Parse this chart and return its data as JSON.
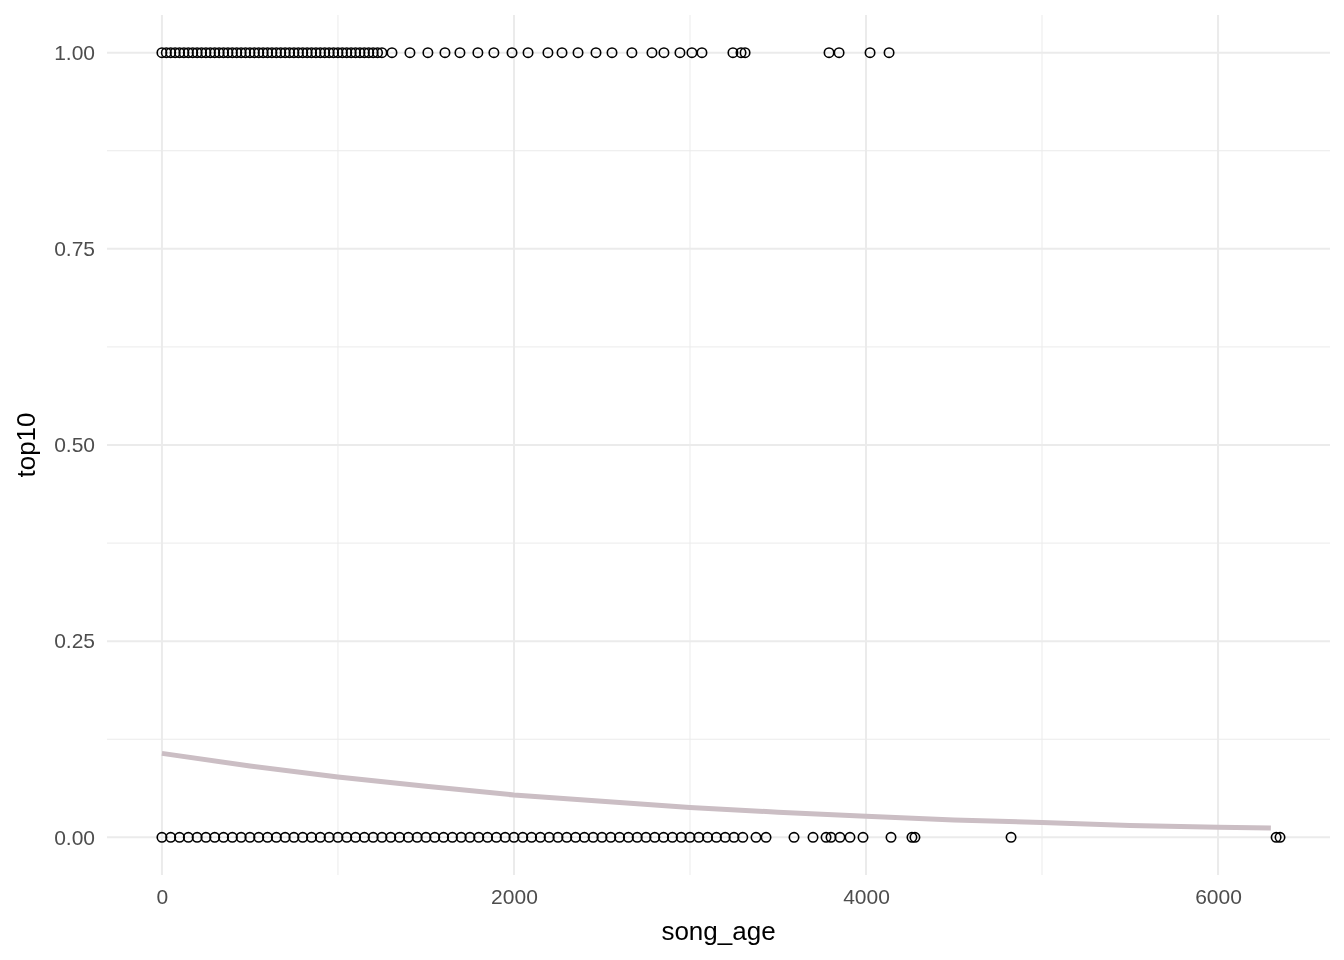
{
  "chart_data": {
    "type": "scatter",
    "xlabel": "song_age",
    "ylabel": "top10",
    "xlim": [
      -312,
      6636
    ],
    "ylim": [
      -0.048,
      1.048
    ],
    "xticks": [
      0,
      {
        "value": 1000,
        "label": null
      },
      2000,
      {
        "value": 3000,
        "label": null
      },
      4000,
      {
        "value": 5000,
        "label": null
      },
      6000
    ],
    "yticks": [
      {
        "value": 0,
        "label": "0.00"
      },
      {
        "value": 0.125,
        "label": null
      },
      {
        "value": 0.25,
        "label": "0.25"
      },
      {
        "value": 0.375,
        "label": null
      },
      {
        "value": 0.5,
        "label": "0.50"
      },
      {
        "value": 0.625,
        "label": null
      },
      {
        "value": 0.75,
        "label": "0.75"
      },
      {
        "value": 0.875,
        "label": null
      },
      {
        "value": 1,
        "label": "1.00"
      }
    ],
    "grid": true,
    "series": [
      {
        "color": "#000000",
        "marker": "circle",
        "x": [
          0,
          25,
          50,
          75,
          100,
          125,
          150,
          175,
          200,
          225,
          250,
          275,
          300,
          325,
          350,
          375,
          400,
          425,
          450,
          475,
          500,
          525,
          550,
          575,
          600,
          625,
          650,
          675,
          700,
          725,
          750,
          775,
          800,
          825,
          850,
          875,
          900,
          925,
          950,
          975,
          1000,
          1025,
          1050,
          1075,
          1100,
          1125,
          1150,
          1175,
          1200,
          1225,
          1250,
          1307,
          1409,
          1511,
          1608,
          1693,
          1795,
          1886,
          1989,
          2080,
          2193,
          2273,
          2364,
          2466,
          2557,
          2670,
          2784,
          2852,
          2943,
          3011,
          3068,
          3244,
          3290,
          3313,
          3790,
          3847,
          4023,
          4131
        ],
        "values": [
          1,
          1,
          1,
          1,
          1,
          1,
          1,
          1,
          1,
          1,
          1,
          1,
          1,
          1,
          1,
          1,
          1,
          1,
          1,
          1,
          1,
          1,
          1,
          1,
          1,
          1,
          1,
          1,
          1,
          1,
          1,
          1,
          1,
          1,
          1,
          1,
          1,
          1,
          1,
          1,
          1,
          1,
          1,
          1,
          1,
          1,
          1,
          1,
          1,
          1,
          1,
          1,
          1,
          1,
          1,
          1,
          1,
          1,
          1,
          1,
          1,
          1,
          1,
          1,
          1,
          1,
          1,
          1,
          1,
          1,
          1,
          1,
          1,
          1,
          1,
          1,
          1,
          1
        ]
      },
      {
        "color": "#000000",
        "marker": "circle",
        "x": [
          0,
          50,
          100,
          150,
          200,
          250,
          300,
          350,
          400,
          450,
          500,
          550,
          600,
          650,
          700,
          750,
          800,
          850,
          900,
          950,
          1000,
          1050,
          1100,
          1150,
          1200,
          1250,
          1300,
          1350,
          1400,
          1450,
          1500,
          1550,
          1600,
          1650,
          1700,
          1750,
          1800,
          1850,
          1900,
          1950,
          2000,
          2050,
          2100,
          2150,
          2200,
          2250,
          2300,
          2350,
          2400,
          2450,
          2500,
          2550,
          2600,
          2650,
          2700,
          2750,
          2800,
          2850,
          2900,
          2950,
          3000,
          3050,
          3100,
          3150,
          3200,
          3250,
          3300,
          3375,
          3432,
          3591,
          3699,
          3773,
          3801,
          3852,
          3909,
          3983,
          4142,
          4261,
          4278,
          4824,
          6330,
          6352
        ],
        "values": [
          0,
          0,
          0,
          0,
          0,
          0,
          0,
          0,
          0,
          0,
          0,
          0,
          0,
          0,
          0,
          0,
          0,
          0,
          0,
          0,
          0,
          0,
          0,
          0,
          0,
          0,
          0,
          0,
          0,
          0,
          0,
          0,
          0,
          0,
          0,
          0,
          0,
          0,
          0,
          0,
          0,
          0,
          0,
          0,
          0,
          0,
          0,
          0,
          0,
          0,
          0,
          0,
          0,
          0,
          0,
          0,
          0,
          0,
          0,
          0,
          0,
          0,
          0,
          0,
          0,
          0,
          0,
          0,
          0,
          0,
          0,
          0,
          0,
          0,
          0,
          0,
          0,
          0,
          0,
          0,
          0,
          0
        ]
      },
      {
        "type": "line",
        "color": "#cbbec4",
        "marker": "none",
        "line_style": "solid",
        "x": [
          0,
          500,
          1000,
          1500,
          2000,
          2500,
          3000,
          3500,
          4000,
          4500,
          5000,
          5500,
          6000,
          6300
        ],
        "values": [
          0.107,
          0.091,
          0.077,
          0.065,
          0.054,
          0.046,
          0.038,
          0.032,
          0.027,
          0.022,
          0.019,
          0.015,
          0.013,
          0.012
        ]
      }
    ]
  }
}
